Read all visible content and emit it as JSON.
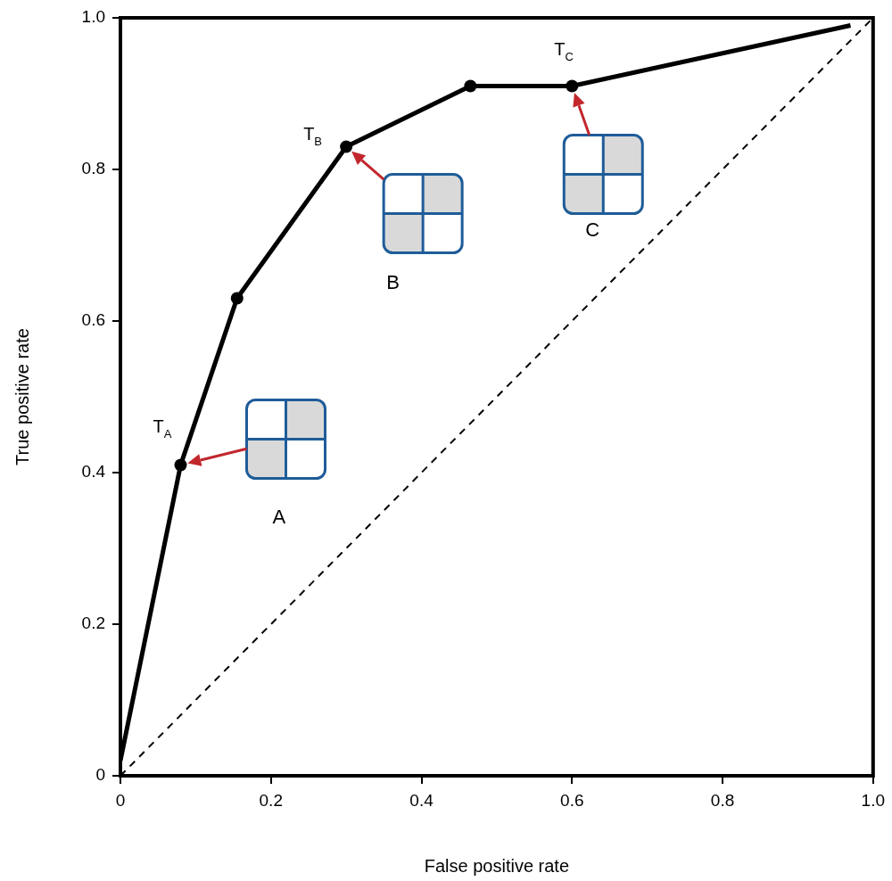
{
  "chart_data": {
    "type": "line",
    "xlabel": "False positive rate",
    "ylabel": "True positive rate",
    "xlim": [
      0,
      1
    ],
    "ylim": [
      0,
      1
    ],
    "xticks": [
      0,
      0.2,
      0.4,
      0.6,
      0.8,
      {
        "value": 1,
        "label": "1.0"
      }
    ],
    "yticks": [
      0,
      0.2,
      0.4,
      0.6,
      0.8,
      {
        "value": 1,
        "label": "1.0"
      }
    ],
    "grid": false,
    "series": [
      {
        "x": [
          0,
          0.08,
          0.155,
          0.3,
          0.465,
          0.6,
          0.97
        ],
        "values": [
          0.02,
          0.41,
          0.63,
          0.83,
          0.91,
          0.91,
          0.99
        ],
        "color": "#000000",
        "marker": "none",
        "line_style": "solid"
      },
      {
        "x": [
          0.08,
          0.155,
          0.3,
          0.465,
          0.6
        ],
        "values": [
          0.41,
          0.63,
          0.83,
          0.91,
          0.91
        ],
        "color": "#000000",
        "marker": "circle",
        "line_style": "none"
      },
      {
        "x": [
          0,
          1
        ],
        "values": [
          0,
          1
        ],
        "color": "#000000",
        "marker": "none",
        "line_style": "dashed"
      }
    ],
    "annotations": [
      {
        "text": "T",
        "subscript": "A",
        "x": 0.08,
        "y": 0.41,
        "matrix_label": "A"
      },
      {
        "text": "T",
        "subscript": "B",
        "x": 0.3,
        "y": 0.83,
        "matrix_label": "B"
      },
      {
        "text": "T",
        "subscript": "C",
        "x": 0.6,
        "y": 0.91,
        "matrix_label": "C"
      }
    ]
  }
}
